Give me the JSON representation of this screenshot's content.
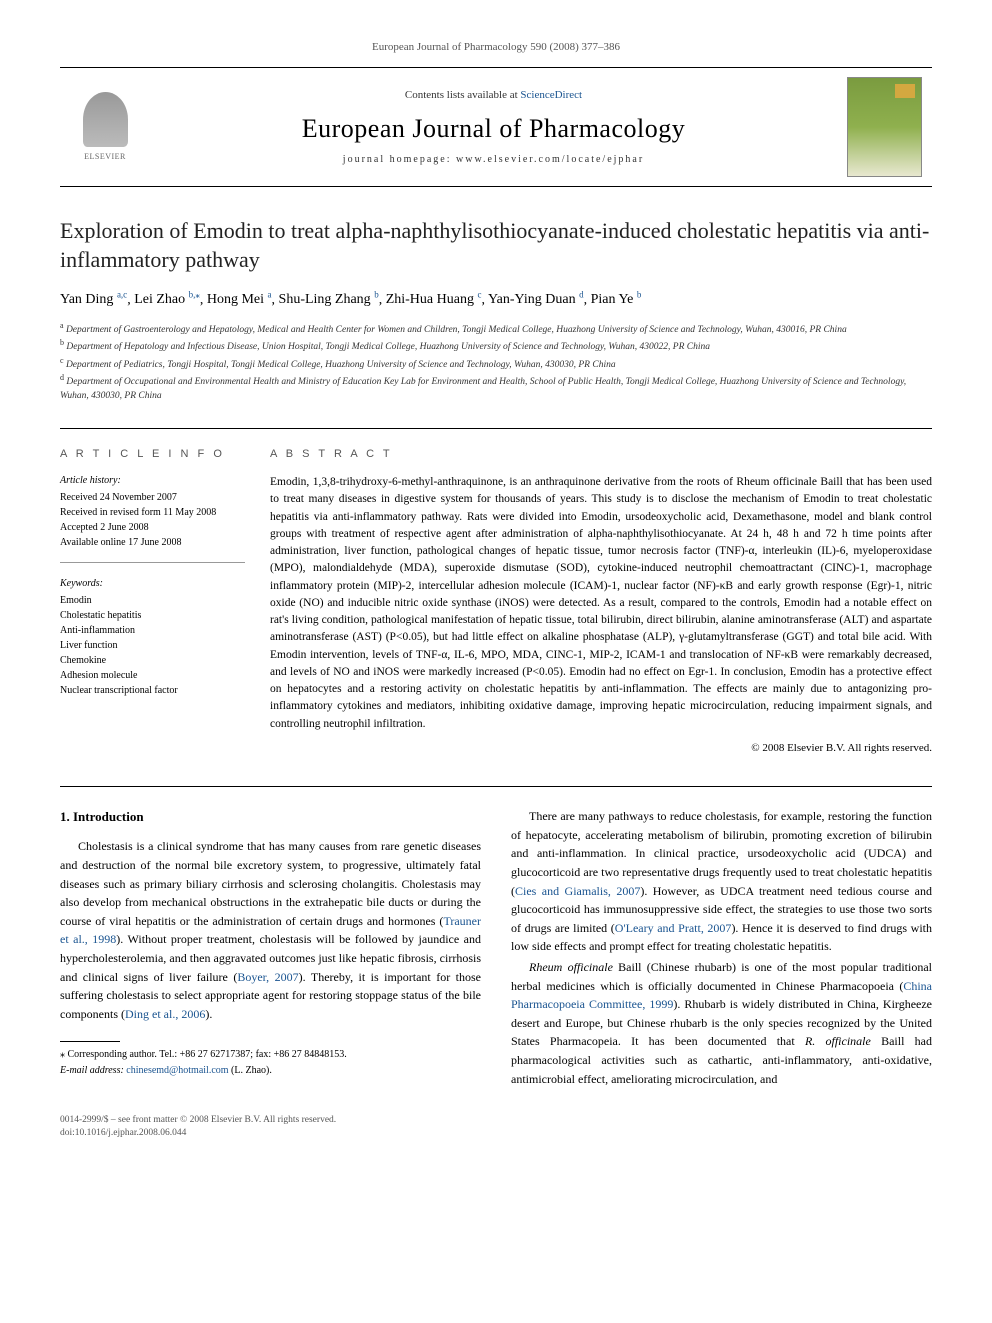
{
  "header": {
    "citation": "European Journal of Pharmacology 590 (2008) 377–386"
  },
  "masthead": {
    "publisher_label": "ELSEVIER",
    "contents_prefix": "Contents lists available at ",
    "contents_link": "ScienceDirect",
    "journal_name": "European Journal of Pharmacology",
    "homepage_prefix": "journal homepage: ",
    "homepage_url": "www.elsevier.com/locate/ejphar"
  },
  "article": {
    "title": "Exploration of Emodin to treat alpha-naphthylisothiocyanate-induced cholestatic hepatitis via anti-inflammatory pathway",
    "authors": [
      {
        "name": "Yan Ding",
        "affil": "a,c"
      },
      {
        "name": "Lei Zhao",
        "affil": "b,",
        "corresponding": true
      },
      {
        "name": "Hong Mei",
        "affil": "a"
      },
      {
        "name": "Shu-Ling Zhang",
        "affil": "b"
      },
      {
        "name": "Zhi-Hua Huang",
        "affil": "c"
      },
      {
        "name": "Yan-Ying Duan",
        "affil": "d"
      },
      {
        "name": "Pian Ye",
        "affil": "b"
      }
    ],
    "affiliations": {
      "a": "Department of Gastroenterology and Hepatology, Medical and Health Center for Women and Children, Tongji Medical College, Huazhong University of Science and Technology, Wuhan, 430016, PR China",
      "b": "Department of Hepatology and Infectious Disease, Union Hospital, Tongji Medical College, Huazhong University of Science and Technology, Wuhan, 430022, PR China",
      "c": "Department of Pediatrics, Tongji Hospital, Tongji Medical College, Huazhong University of Science and Technology, Wuhan, 430030, PR China",
      "d": "Department of Occupational and Environmental Health and Ministry of Education Key Lab for Environment and Health, School of Public Health, Tongji Medical College, Huazhong University of Science and Technology, Wuhan, 430030, PR China"
    }
  },
  "info": {
    "heading": "A R T I C L E   I N F O",
    "history_label": "Article history:",
    "history": [
      "Received 24 November 2007",
      "Received in revised form 11 May 2008",
      "Accepted 2 June 2008",
      "Available online 17 June 2008"
    ],
    "keywords_label": "Keywords:",
    "keywords": [
      "Emodin",
      "Cholestatic hepatitis",
      "Anti-inflammation",
      "Liver function",
      "Chemokine",
      "Adhesion molecule",
      "Nuclear transcriptional factor"
    ]
  },
  "abstract": {
    "heading": "A B S T R A C T",
    "text": "Emodin, 1,3,8-trihydroxy-6-methyl-anthraquinone, is an anthraquinone derivative from the roots of Rheum officinale Baill that has been used to treat many diseases in digestive system for thousands of years. This study is to disclose the mechanism of Emodin to treat cholestatic hepatitis via anti-inflammatory pathway. Rats were divided into Emodin, ursodeoxycholic acid, Dexamethasone, model and blank control groups with treatment of respective agent after administration of alpha-naphthylisothiocyanate. At 24 h, 48 h and 72 h time points after administration, liver function, pathological changes of hepatic tissue, tumor necrosis factor (TNF)-α, interleukin (IL)-6, myeloperoxidase (MPO), malondialdehyde (MDA), superoxide dismutase (SOD), cytokine-induced neutrophil chemoattractant (CINC)-1, macrophage inflammatory protein (MIP)-2, intercellular adhesion molecule (ICAM)-1, nuclear factor (NF)-κB and early growth response (Egr)-1, nitric oxide (NO) and inducible nitric oxide synthase (iNOS) were detected. As a result, compared to the controls, Emodin had a notable effect on rat's living condition, pathological manifestation of hepatic tissue, total bilirubin, direct bilirubin, alanine aminotransferase (ALT) and aspartate aminotransferase (AST) (P<0.05), but had little effect on alkaline phosphatase (ALP), γ-glutamyltransferase (GGT) and total bile acid. With Emodin intervention, levels of TNF-α, IL-6, MPO, MDA, CINC-1, MIP-2, ICAM-1 and translocation of NF-κB were remarkably decreased, and levels of NO and iNOS were markedly increased (P<0.05). Emodin had no effect on Egr-1. In conclusion, Emodin has a protective effect on hepatocytes and a restoring activity on cholestatic hepatitis by anti-inflammation. The effects are mainly due to antagonizing pro-inflammatory cytokines and mediators, inhibiting oxidative damage, improving hepatic microcirculation, reducing impairment signals, and controlling neutrophil infiltration.",
    "copyright": "© 2008 Elsevier B.V. All rights reserved."
  },
  "body": {
    "section_number": "1.",
    "section_title": "Introduction",
    "para1_part1": "Cholestasis is a clinical syndrome that has many causes from rare genetic diseases and destruction of the normal bile excretory system, to progressive, ultimately fatal diseases such as primary biliary cirrhosis and sclerosing cholangitis. Cholestasis may also develop from mechanical obstructions in the extrahepatic bile ducts or during the course of viral hepatitis or the administration of certain drugs and hormones (",
    "ref1": "Trauner et al., 1998",
    "para1_part2": "). Without proper treatment, cholestasis will be followed by jaundice and hypercholesterolemia, and then aggravated outcomes just like hepatic fibrosis, cirrhosis and clinical signs of liver failure (",
    "ref2": "Boyer, 2007",
    "para1_part3": "). Thereby, it is important for those suffering cholestasis to select appropriate agent for restoring stoppage status of the bile components (",
    "ref3": "Ding et al., 2006",
    "para1_part4": ").",
    "para2_part1": "There are many pathways to reduce cholestasis, for example, restoring the function of hepatocyte, accelerating metabolism of bilirubin, promoting excretion of bilirubin and anti-inflammation. In clinical practice, ursodeoxycholic acid (UDCA) and glucocorticoid are two representative drugs frequently used to treat cholestatic hepatitis (",
    "ref4": "Cies and Giamalis, 2007",
    "para2_part2": "). However, as UDCA treatment need tedious course and glucocorticoid has immunosuppressive side effect, the strategies to use those two sorts of drugs are limited (",
    "ref5": "O'Leary and Pratt, 2007",
    "para2_part3": "). Hence it is deserved to find drugs with low side effects and prompt effect for treating cholestatic hepatitis.",
    "para3_em1": "Rheum officinale",
    "para3_part1": " Baill (Chinese rhubarb) is one of the most popular traditional herbal medicines which is officially documented in Chinese Pharmacopoeia (",
    "ref6": "China Pharmacopoeia Committee, 1999",
    "para3_part2": "). Rhubarb is widely distributed in China, Kirgheeze desert and Europe, but Chinese rhubarb is the only species recognized by the United States Pharmacopeia. It has been documented that ",
    "para3_em2": "R. officinale",
    "para3_part3": " Baill had pharmacological activities such as cathartic, anti-inflammatory, anti-oxidative, antimicrobial effect, ameliorating microcirculation, and"
  },
  "footnote": {
    "corresponding": "⁎ Corresponding author. Tel.: +86 27 62717387; fax: +86 27 84848153.",
    "email_label": "E-mail address:",
    "email": "chinesemd@hotmail.com",
    "email_name": "(L. Zhao)."
  },
  "footer": {
    "issn_line": "0014-2999/$ – see front matter © 2008 Elsevier B.V. All rights reserved.",
    "doi_line": "doi:10.1016/j.ejphar.2008.06.044"
  },
  "colors": {
    "link": "#1a5490",
    "text": "#000000",
    "muted": "#555555",
    "cover_green": "#7a9b3f"
  }
}
